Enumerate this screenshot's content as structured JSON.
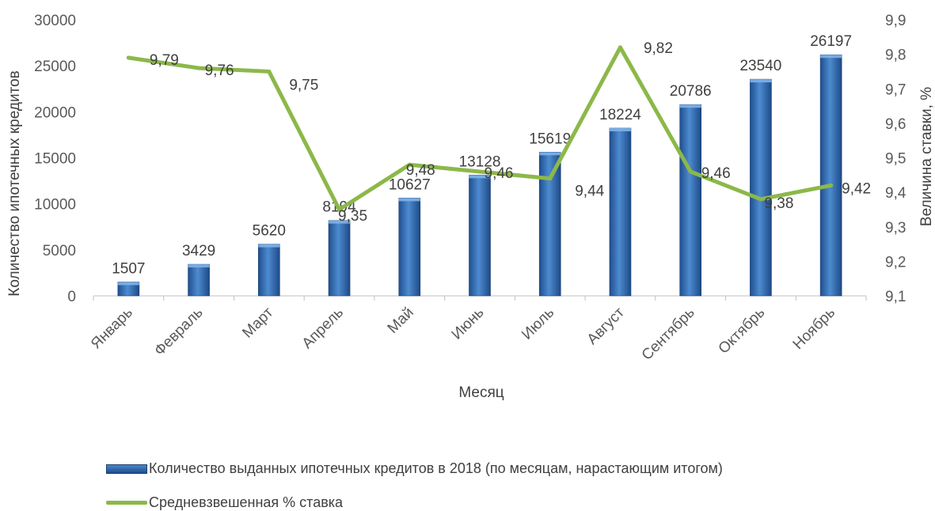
{
  "chart_data": {
    "type": "bar",
    "categories": [
      "Январь",
      "Февраль",
      "Март",
      "Апрель",
      "Май",
      "Июнь",
      "Июль",
      "Август",
      "Сентябрь",
      "Октябрь",
      "Ноябрь"
    ],
    "series": [
      {
        "name": "Количество выданных ипотечных кредитов  в 2018 (по месяцам, нарастающим итогом)",
        "type": "bar",
        "axis": "left",
        "color": "#2e64a8",
        "values": [
          1507,
          3429,
          5620,
          8194,
          10627,
          13128,
          15619,
          18224,
          20786,
          23540,
          26197
        ],
        "labels": [
          "1507",
          "3429",
          "5620",
          "8194",
          "10627",
          "13128",
          "15619",
          "18224",
          "20786",
          "23540",
          "26197"
        ]
      },
      {
        "name": "Средневзвешенная % ставка",
        "type": "line",
        "axis": "right",
        "color": "#8cb849",
        "values": [
          9.79,
          9.76,
          9.75,
          9.35,
          9.48,
          9.46,
          9.44,
          9.82,
          9.46,
          9.38,
          9.42
        ],
        "labels": [
          "9,79",
          "9,76",
          "9,75",
          "9,35",
          "9,48",
          "9,46",
          "9,44",
          "9,82",
          "9,46",
          "9,38",
          "9,42"
        ]
      }
    ],
    "xlabel": "Месяц",
    "ylabel": "Количество ипотечных кредитов",
    "y2label": "Величина ставки, %",
    "ylim": [
      0,
      30000
    ],
    "y2lim": [
      9.1,
      9.9
    ],
    "yticks": [
      "0",
      "5000",
      "10000",
      "15000",
      "20000",
      "25000",
      "30000"
    ],
    "y2ticks": [
      "9,1",
      "9,2",
      "9,3",
      "9,4",
      "9,5",
      "9,6",
      "9,7",
      "9,8",
      "9,9"
    ],
    "grid": false,
    "legend_position": "bottom"
  }
}
